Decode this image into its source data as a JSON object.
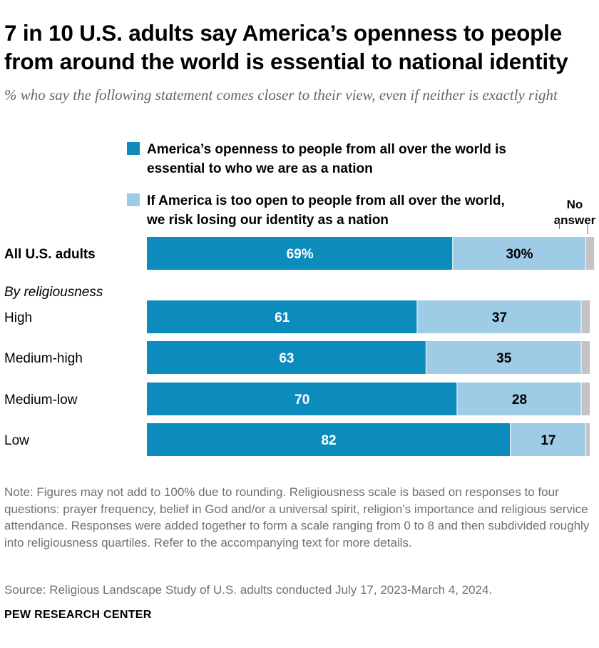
{
  "title": "7 in 10 U.S. adults say America’s openness to people from around the world is essential to national identity",
  "subtitle": "% who say the following statement comes closer to their view, even if neither is exactly right",
  "legend": {
    "essential": "America’s openness to people from all over the world is essential to who we are as a nation",
    "risk": "If America is too open to people from all over the world, we risk losing our identity as a nation",
    "no_answer": "No answer"
  },
  "group_label": "By religiousness",
  "colors": {
    "essential": "#0c8cbc",
    "risk": "#9ecbe6",
    "no_answer": "#c4c4c4"
  },
  "chart_data": {
    "type": "bar",
    "orientation": "horizontal",
    "stacked": true,
    "categories": [
      "All U.S. adults",
      "High",
      "Medium-high",
      "Medium-low",
      "Low"
    ],
    "series": [
      {
        "name": "America’s openness to people from all over the world is essential to who we are as a nation",
        "values": [
          69,
          61,
          63,
          70,
          82
        ],
        "labels": [
          "69%",
          "61",
          "63",
          "70",
          "82"
        ]
      },
      {
        "name": "If America is too open to people from all over the world, we risk losing our identity as a nation",
        "values": [
          30,
          37,
          35,
          28,
          17
        ],
        "labels": [
          "30%",
          "37",
          "35",
          "28",
          "17"
        ]
      },
      {
        "name": "No answer",
        "values": [
          2,
          2,
          2,
          2,
          1
        ]
      }
    ],
    "xlim": [
      0,
      100
    ]
  },
  "note": "Note: Figures may not add to 100% due to rounding. Religiousness scale is based on responses to four questions: prayer frequency, belief in God and/or a universal spirit, religion’s importance and religious service attendance. Responses were added together to form a scale ranging from 0 to 8 and then subdivided roughly into religiousness quartiles. Refer to the accompanying text for more details.",
  "source": "Source: Religious Landscape Study of U.S. adults conducted July 17, 2023-March 4, 2024.",
  "brand": "PEW RESEARCH CENTER"
}
